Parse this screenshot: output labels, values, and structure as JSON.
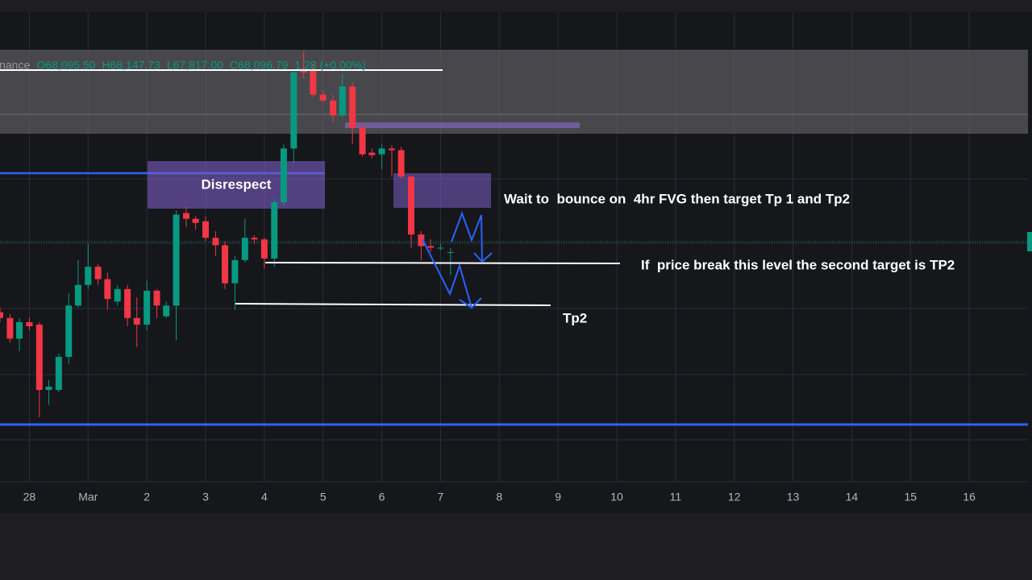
{
  "chart_data": {
    "type": "candlestick",
    "x": [
      -0.5,
      -0.33,
      -0.17,
      0,
      0.17,
      0.33,
      0.5,
      0.67,
      0.83,
      1,
      1.17,
      1.33,
      1.5,
      1.67,
      1.83,
      2,
      2.17,
      2.33,
      2.5,
      2.67,
      2.83,
      3,
      3.17,
      3.33,
      3.5,
      3.67,
      3.83,
      4,
      4.17,
      4.33,
      4.5,
      4.67,
      4.83,
      5,
      5.17,
      5.33,
      5.5,
      5.67,
      5.83,
      6,
      6.17,
      6.33,
      6.5,
      6.67,
      6.83,
      7,
      7.17
    ],
    "open": [
      67370,
      67300,
      67050,
      67250,
      67220,
      66430,
      66430,
      66830,
      67450,
      67700,
      67920,
      67770,
      67500,
      67650,
      67300,
      67220,
      67630,
      67320,
      67450,
      68570,
      68500,
      68470,
      68270,
      68180,
      67720,
      68000,
      68270,
      68250,
      68020,
      68700,
      69350,
      70290,
      70290,
      70000,
      69930,
      69750,
      70100,
      69600,
      69300,
      69280,
      69350,
      69330,
      69010,
      68310,
      68170,
      68150,
      68095.5
    ],
    "high": [
      67430,
      67350,
      67300,
      67300,
      67250,
      66550,
      66870,
      67600,
      68000,
      68200,
      67950,
      67850,
      67700,
      67700,
      67550,
      67750,
      67650,
      67500,
      68600,
      68650,
      68530,
      68530,
      68350,
      68230,
      68050,
      68500,
      68300,
      68270,
      68750,
      69400,
      70300,
      70530,
      70370,
      70050,
      70000,
      70250,
      70150,
      69650,
      69350,
      69400,
      69390,
      69370,
      69030,
      68350,
      68250,
      68200,
      68147.73
    ],
    "low": [
      67250,
      67000,
      66900,
      67150,
      66100,
      66250,
      66400,
      66750,
      67430,
      67650,
      67700,
      67400,
      67450,
      67200,
      66950,
      67150,
      67300,
      67300,
      67030,
      68400,
      68370,
      68230,
      68050,
      67650,
      67400,
      67970,
      68200,
      67900,
      67920,
      68650,
      69170,
      70200,
      69970,
      69900,
      69670,
      69730,
      69400,
      69250,
      69230,
      69100,
      69010,
      68990,
      68150,
      68000,
      68100,
      68120,
      67817
    ],
    "close": [
      67300,
      67050,
      67250,
      67200,
      66430,
      66470,
      66830,
      67450,
      67700,
      67920,
      67770,
      67530,
      67650,
      67300,
      67220,
      67630,
      67450,
      67450,
      68550,
      68500,
      68450,
      68270,
      68180,
      67720,
      68000,
      68270,
      68250,
      68020,
      68700,
      69350,
      70270,
      70270,
      70000,
      69930,
      69750,
      70100,
      69600,
      69280,
      69270,
      69350,
      69330,
      69010,
      68310,
      68170,
      68150,
      68150,
      68096.79
    ],
    "xlim": [
      -0.5,
      17
    ],
    "xticks": [
      {
        "value": 0,
        "label": "28"
      },
      {
        "value": 1,
        "label": "Mar"
      },
      2,
      3,
      4,
      5,
      6,
      7,
      8,
      9,
      10,
      11,
      12,
      13,
      14,
      15,
      16
    ],
    "ylim": [
      65320,
      71000
    ],
    "up_color": "#089981",
    "down_color": "#f23645",
    "grid": true,
    "legend_text": [
      "inance",
      "O68,095.50",
      "H68,147.73",
      "L67,817.00",
      "C68,096.79",
      "1.28 (+0.00%)"
    ],
    "annotations": [
      "Disrespect",
      "Wait to  bounce on  4hr FVG then target Tp 1 and Tp2",
      "If  price break this level the second target is TP2",
      "Tp2"
    ]
  }
}
